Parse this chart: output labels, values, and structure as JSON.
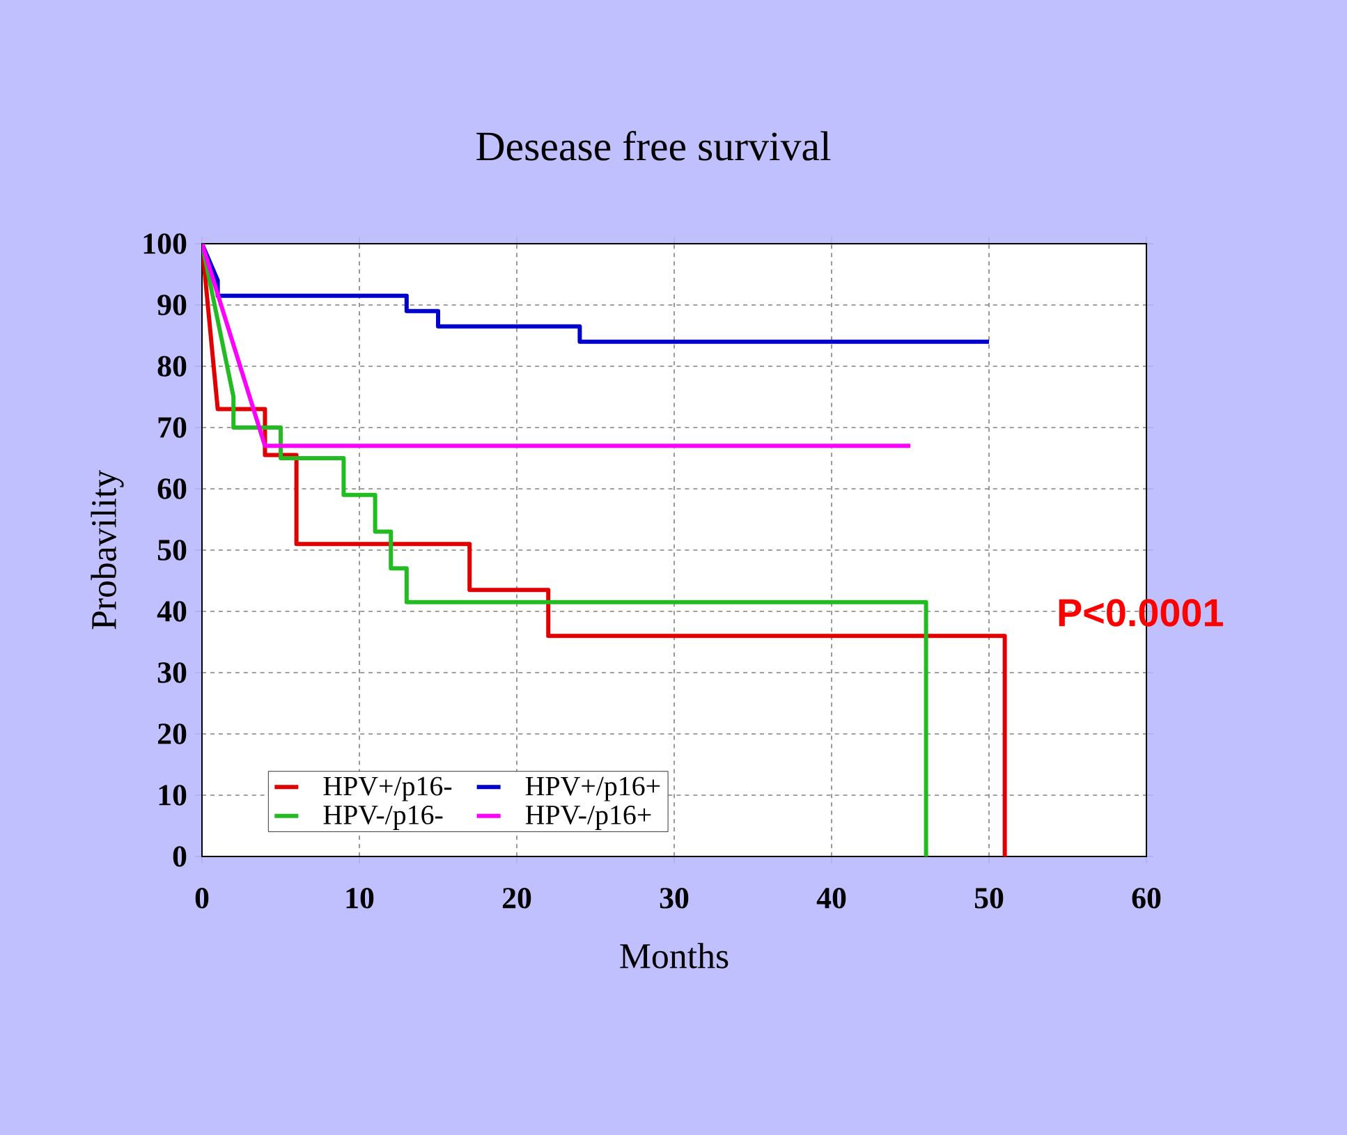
{
  "chart_data": {
    "type": "line",
    "title": "Desease free survival",
    "xlabel": "Months",
    "ylabel": "Probavility",
    "xlim": [
      0,
      60
    ],
    "xticks": [
      0,
      10,
      20,
      30,
      40,
      50,
      60
    ],
    "ylim": [
      0,
      100
    ],
    "yticks": [
      0,
      10,
      20,
      30,
      40,
      50,
      60,
      70,
      80,
      90,
      100
    ],
    "grid": true,
    "legend": "bottom left",
    "marker": "none",
    "line_style": "solid",
    "annotations": [
      "P<0.0001"
    ],
    "series": [
      {
        "name": "HPV+/p16-",
        "color": "#e00000",
        "x": [
          0,
          1,
          4,
          4,
          6,
          6,
          17,
          17,
          22,
          22,
          51,
          51
        ],
        "values": [
          100,
          73,
          73,
          65.5,
          65.5,
          51,
          51,
          43.5,
          43.5,
          36,
          36,
          0
        ]
      },
      {
        "name": "HPV+/p16+",
        "color": "#0000cc",
        "x": [
          0,
          1,
          1,
          13,
          13,
          15,
          15,
          24,
          24,
          50
        ],
        "values": [
          100,
          94,
          91.5,
          91.5,
          89,
          89,
          86.5,
          86.5,
          84,
          84
        ]
      },
      {
        "name": "HPV-/p16-",
        "color": "#22bb22",
        "x": [
          0,
          2,
          2,
          5,
          5,
          9,
          9,
          11,
          11,
          12,
          12,
          13,
          13,
          46,
          46
        ],
        "values": [
          100,
          75,
          70,
          70,
          65,
          65,
          59,
          59,
          53,
          53,
          47,
          47,
          41.5,
          41.5,
          0
        ]
      },
      {
        "name": "HPV-/p16+",
        "color": "#ff00ff",
        "x": [
          0,
          4,
          45
        ],
        "values": [
          100,
          67,
          67
        ]
      }
    ]
  }
}
